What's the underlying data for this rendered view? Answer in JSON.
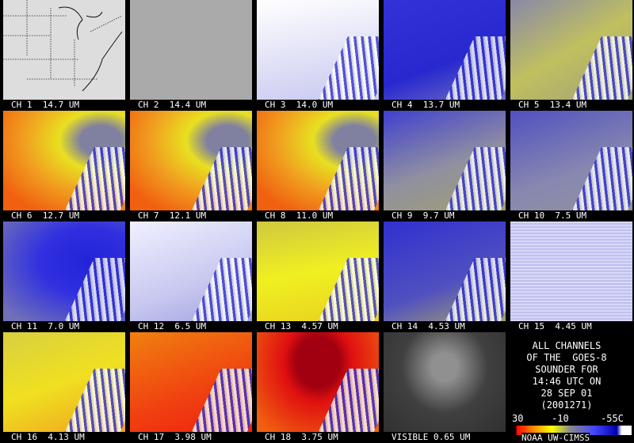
{
  "panels": [
    {
      "label": "CH 1  14.7 UM"
    },
    {
      "label": "CH 2  14.4 UM"
    },
    {
      "label": "CH 3  14.0 UM"
    },
    {
      "label": "CH 4  13.7 UM"
    },
    {
      "label": "CH 5  13.4 UM"
    },
    {
      "label": "CH 6  12.7 UM"
    },
    {
      "label": "CH 7  12.1 UM"
    },
    {
      "label": "CH 8  11.0 UM"
    },
    {
      "label": "CH 9  9.7 UM"
    },
    {
      "label": "CH 10  7.5 UM"
    },
    {
      "label": "CH 11  7.0 UM"
    },
    {
      "label": "CH 12  6.5 UM"
    },
    {
      "label": "CH 13  4.57 UM"
    },
    {
      "label": "CH 14  4.53 UM"
    },
    {
      "label": "CH 15  4.45 UM"
    },
    {
      "label": "CH 16  4.13 UM"
    },
    {
      "label": "CH 17  3.98 UM"
    },
    {
      "label": "CH 18  3.75 UM"
    },
    {
      "label": "VISIBLE 0.65 UM"
    }
  ],
  "info": {
    "lines": [
      "ALL CHANNELS",
      "OF THE  GOES-8",
      "SOUNDER FOR",
      "14:46 UTC ON",
      "28 SEP 01",
      "(2001271)"
    ],
    "scale": [
      "30",
      "-10",
      "-55C"
    ],
    "credit": "NOAA UW-CIMSS"
  }
}
